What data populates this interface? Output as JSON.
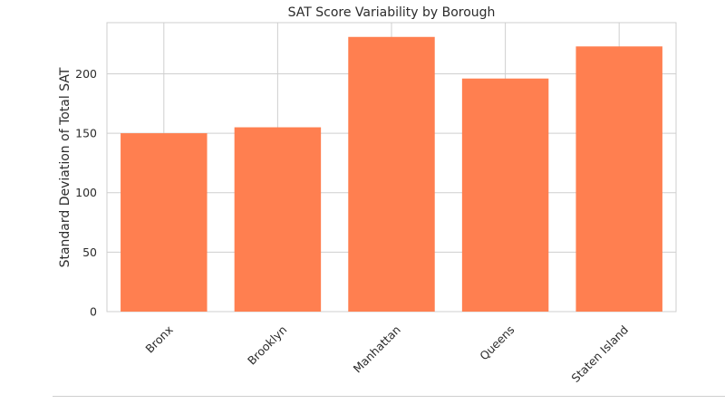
{
  "chart_data": {
    "type": "bar",
    "title": "SAT Score Variability by Borough",
    "xlabel": "",
    "ylabel": "Standard Deviation of Total SAT",
    "categories": [
      "Bronx",
      "Brooklyn",
      "Manhattan",
      "Queens",
      "Staten Island"
    ],
    "values": [
      150,
      155,
      231,
      196,
      223
    ],
    "ylim": [
      0,
      243
    ],
    "yticks": [
      0,
      50,
      100,
      150,
      200
    ],
    "grid": true,
    "bar_color": "#ff7f50",
    "legend": "none"
  }
}
